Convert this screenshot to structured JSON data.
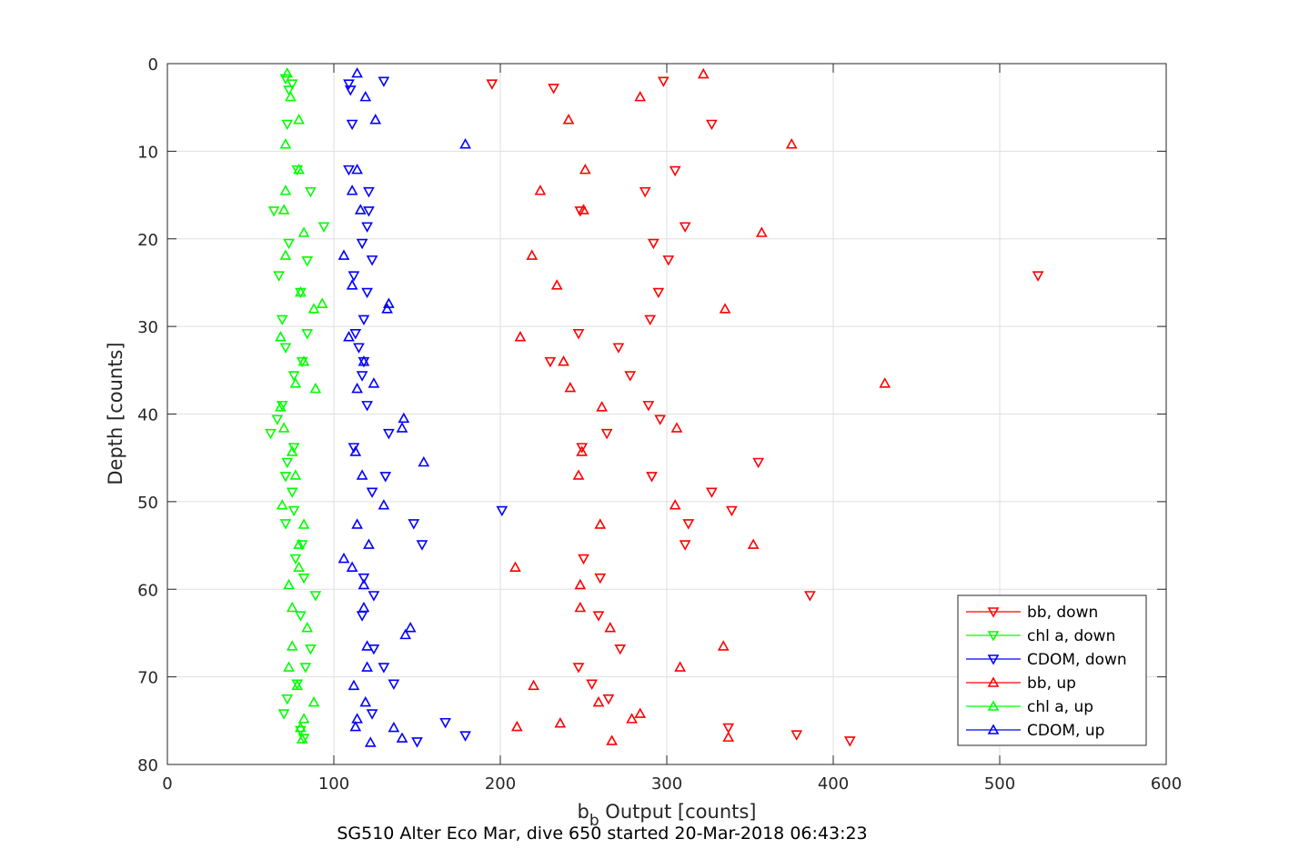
{
  "chart_data": {
    "type": "scatter",
    "xlabel_base": "b",
    "xlabel_sub": "b",
    "xlabel_rest": " Output [counts]",
    "ylabel": "Depth [counts]",
    "caption": "SG510 Alter Eco Mar, dive 650 started 20-Mar-2018 06:43:23",
    "xlim": [
      0,
      600
    ],
    "ylim": [
      0,
      80
    ],
    "y_reversed": true,
    "grid": true,
    "legend_position": "bottom-right",
    "x_ticks": [
      "0",
      "100",
      "200",
      "300",
      "400",
      "500",
      "600"
    ],
    "y_ticks": [
      "0",
      "10",
      "20",
      "30",
      "40",
      "50",
      "60",
      "70",
      "80"
    ],
    "series": [
      {
        "name": "bb, down",
        "color": "#ff0000",
        "marker": "triangle-down",
        "points": [
          [
            298,
            2
          ],
          [
            195,
            2.3
          ],
          [
            232,
            2.8
          ],
          [
            327,
            6.9
          ],
          [
            305,
            12.2
          ],
          [
            287,
            14.6
          ],
          [
            248,
            16.8
          ],
          [
            311,
            18.6
          ],
          [
            292,
            20.5
          ],
          [
            301,
            22.4
          ],
          [
            523,
            24.2
          ],
          [
            295,
            26.1
          ],
          [
            290,
            29.2
          ],
          [
            247,
            30.8
          ],
          [
            271,
            32.4
          ],
          [
            230,
            34
          ],
          [
            278,
            35.6
          ],
          [
            289,
            39
          ],
          [
            296,
            40.6
          ],
          [
            264,
            42.2
          ],
          [
            249,
            43.8
          ],
          [
            355,
            45.5
          ],
          [
            291,
            47.1
          ],
          [
            327,
            48.9
          ],
          [
            339,
            51
          ],
          [
            313,
            52.5
          ],
          [
            311,
            54.9
          ],
          [
            250,
            56.5
          ],
          [
            260,
            58.7
          ],
          [
            386,
            60.7
          ],
          [
            259,
            63
          ],
          [
            272,
            66.8
          ],
          [
            247,
            68.9
          ],
          [
            255,
            70.8
          ],
          [
            265,
            72.5
          ],
          [
            337,
            75.8
          ],
          [
            378,
            76.6
          ],
          [
            410,
            77.3
          ]
        ]
      },
      {
        "name": "chl a, down",
        "color": "#00ff00",
        "marker": "triangle-down",
        "points": [
          [
            71,
            1.7
          ],
          [
            75,
            2.3
          ],
          [
            73,
            3
          ],
          [
            72,
            6.9
          ],
          [
            78,
            12.1
          ],
          [
            86,
            14.6
          ],
          [
            64,
            16.8
          ],
          [
            94,
            18.6
          ],
          [
            73,
            20.5
          ],
          [
            84,
            22.5
          ],
          [
            67,
            24.2
          ],
          [
            80,
            26.1
          ],
          [
            69,
            29.2
          ],
          [
            84,
            30.8
          ],
          [
            71,
            32.4
          ],
          [
            81,
            34
          ],
          [
            76,
            35.6
          ],
          [
            69,
            39
          ],
          [
            66,
            40.6
          ],
          [
            62,
            42.2
          ],
          [
            76,
            43.8
          ],
          [
            72,
            45.5
          ],
          [
            71,
            47.1
          ],
          [
            75,
            48.9
          ],
          [
            76,
            51
          ],
          [
            71,
            52.5
          ],
          [
            81,
            54.9
          ],
          [
            77,
            56.5
          ],
          [
            82,
            58.7
          ],
          [
            89,
            60.7
          ],
          [
            80,
            63
          ],
          [
            86,
            66.8
          ],
          [
            83,
            68.9
          ],
          [
            78,
            70.8
          ],
          [
            72,
            72.5
          ],
          [
            70,
            74.2
          ],
          [
            80,
            76.1
          ],
          [
            82,
            77
          ]
        ]
      },
      {
        "name": "CDOM, down",
        "color": "#0000ff",
        "marker": "triangle-down",
        "points": [
          [
            130,
            2
          ],
          [
            109,
            2.3
          ],
          [
            110,
            3
          ],
          [
            111,
            6.9
          ],
          [
            109,
            12.1
          ],
          [
            121,
            14.6
          ],
          [
            121,
            16.8
          ],
          [
            120,
            18.6
          ],
          [
            117,
            20.5
          ],
          [
            123,
            22.4
          ],
          [
            112,
            24.2
          ],
          [
            120,
            26.1
          ],
          [
            118,
            29.2
          ],
          [
            113,
            30.8
          ],
          [
            115,
            32.4
          ],
          [
            118,
            34
          ],
          [
            117,
            35.6
          ],
          [
            120,
            39
          ],
          [
            133,
            42.2
          ],
          [
            112,
            43.8
          ],
          [
            131,
            47.1
          ],
          [
            123,
            48.9
          ],
          [
            201,
            51
          ],
          [
            148,
            52.5
          ],
          [
            153,
            54.9
          ],
          [
            118,
            58.7
          ],
          [
            124,
            60.7
          ],
          [
            117,
            63
          ],
          [
            124,
            66.8
          ],
          [
            130,
            68.9
          ],
          [
            136,
            70.8
          ],
          [
            123,
            74.2
          ],
          [
            167,
            75.2
          ],
          [
            179,
            76.7
          ],
          [
            150,
            77.4
          ]
        ]
      },
      {
        "name": "bb, up",
        "color": "#ff0000",
        "marker": "triangle-up",
        "points": [
          [
            322,
            1.2
          ],
          [
            284,
            3.8
          ],
          [
            241,
            6.4
          ],
          [
            375,
            9.2
          ],
          [
            251,
            12.1
          ],
          [
            224,
            14.5
          ],
          [
            250,
            16.7
          ],
          [
            357,
            19.3
          ],
          [
            219,
            21.9
          ],
          [
            234,
            25.3
          ],
          [
            335,
            28
          ],
          [
            212,
            31.2
          ],
          [
            238,
            34
          ],
          [
            242,
            37
          ],
          [
            431,
            36.5
          ],
          [
            261,
            39.2
          ],
          [
            306,
            41.6
          ],
          [
            249,
            44.3
          ],
          [
            247,
            47
          ],
          [
            305,
            50.4
          ],
          [
            260,
            52.6
          ],
          [
            352,
            54.9
          ],
          [
            209,
            57.5
          ],
          [
            248,
            59.5
          ],
          [
            248,
            62.1
          ],
          [
            266,
            64.4
          ],
          [
            334,
            66.5
          ],
          [
            308,
            68.9
          ],
          [
            220,
            71
          ],
          [
            259,
            72.9
          ],
          [
            284,
            74.2
          ],
          [
            279,
            74.8
          ],
          [
            210,
            75.7
          ],
          [
            236,
            75.3
          ],
          [
            337,
            76.9
          ],
          [
            267,
            77.3
          ]
        ]
      },
      {
        "name": "chl a, up",
        "color": "#00ff00",
        "marker": "triangle-up",
        "points": [
          [
            72,
            1.1
          ],
          [
            74,
            3.8
          ],
          [
            79,
            6.4
          ],
          [
            71,
            9.2
          ],
          [
            79,
            12.1
          ],
          [
            71,
            14.5
          ],
          [
            70,
            16.7
          ],
          [
            82,
            19.3
          ],
          [
            71,
            21.9
          ],
          [
            80,
            26.1
          ],
          [
            88,
            28
          ],
          [
            93,
            27.4
          ],
          [
            68,
            31.2
          ],
          [
            82,
            34
          ],
          [
            77,
            36.5
          ],
          [
            89,
            37.1
          ],
          [
            68,
            39.2
          ],
          [
            70,
            41.6
          ],
          [
            75,
            44.3
          ],
          [
            77,
            47
          ],
          [
            69,
            50.4
          ],
          [
            82,
            52.6
          ],
          [
            79,
            54.9
          ],
          [
            79,
            57.5
          ],
          [
            73,
            59.5
          ],
          [
            75,
            62.1
          ],
          [
            84,
            64.4
          ],
          [
            75,
            66.5
          ],
          [
            73,
            68.9
          ],
          [
            78,
            71
          ],
          [
            88,
            72.9
          ],
          [
            82,
            74.8
          ],
          [
            80,
            75.8
          ],
          [
            81,
            77.1
          ]
        ]
      },
      {
        "name": "CDOM, up",
        "color": "#0000ff",
        "marker": "triangle-up",
        "points": [
          [
            114,
            1.1
          ],
          [
            119,
            3.8
          ],
          [
            125,
            6.4
          ],
          [
            179,
            9.2
          ],
          [
            114,
            12.1
          ],
          [
            111,
            14.5
          ],
          [
            116,
            16.7
          ],
          [
            106,
            21.9
          ],
          [
            111,
            25.3
          ],
          [
            133,
            27.4
          ],
          [
            132,
            28
          ],
          [
            109,
            31.2
          ],
          [
            118,
            34
          ],
          [
            124,
            36.5
          ],
          [
            114,
            37.1
          ],
          [
            142,
            40.5
          ],
          [
            141,
            41.6
          ],
          [
            113,
            44.3
          ],
          [
            154,
            45.5
          ],
          [
            117,
            47
          ],
          [
            130,
            50.4
          ],
          [
            114,
            52.6
          ],
          [
            121,
            54.9
          ],
          [
            106,
            56.5
          ],
          [
            111,
            57.5
          ],
          [
            118,
            59.5
          ],
          [
            118,
            62.1
          ],
          [
            146,
            64.4
          ],
          [
            143,
            65.2
          ],
          [
            120,
            66.5
          ],
          [
            120,
            68.9
          ],
          [
            112,
            71
          ],
          [
            119,
            72.9
          ],
          [
            114,
            74.8
          ],
          [
            113,
            75.7
          ],
          [
            136,
            75.8
          ],
          [
            141,
            77
          ],
          [
            122,
            77.5
          ]
        ]
      }
    ]
  }
}
